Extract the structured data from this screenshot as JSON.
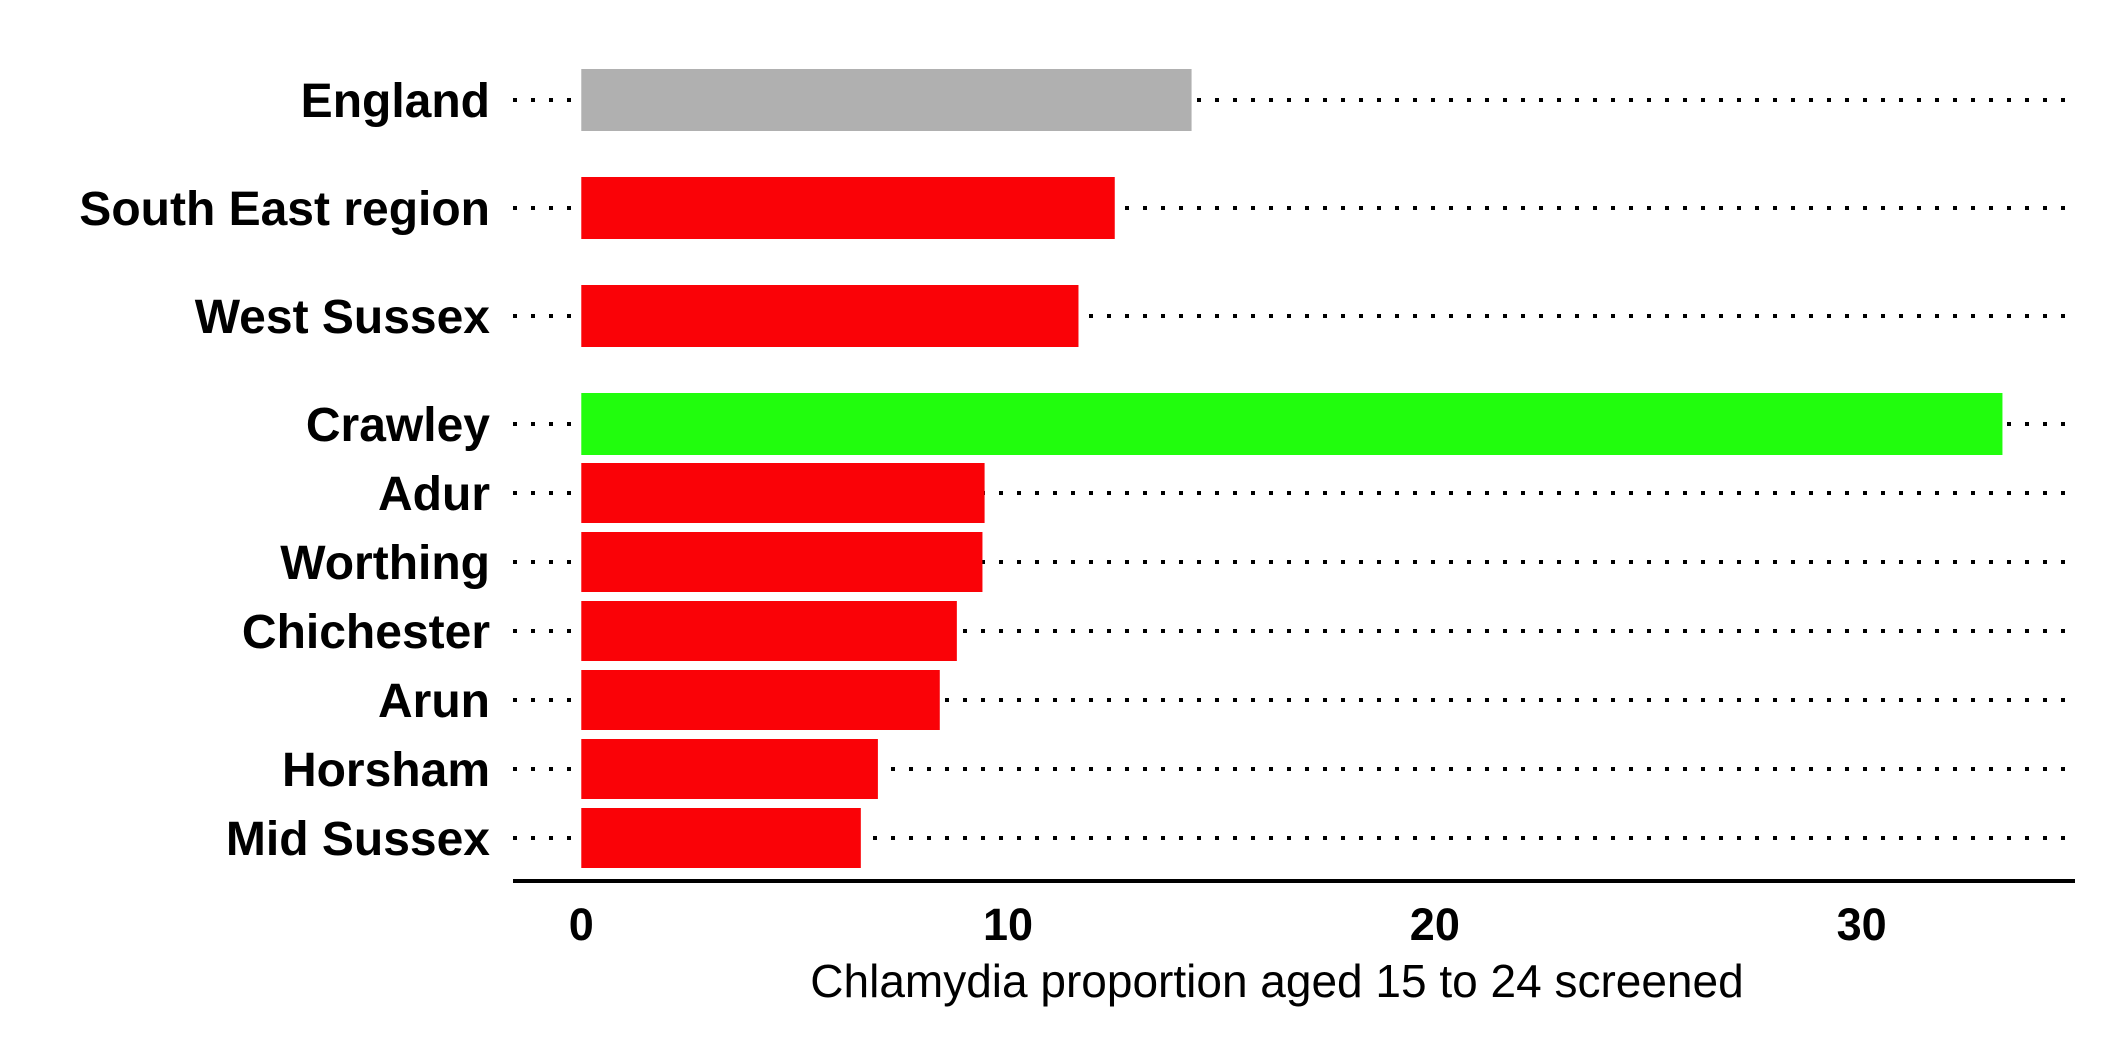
{
  "chart_data": {
    "type": "bar",
    "orientation": "horizontal",
    "title": "",
    "xlabel": "Chlamydia proportion aged 15 to 24 screened",
    "ylabel": "",
    "xlim": [
      -1.6,
      35.0
    ],
    "xticks": [
      0,
      10,
      20,
      30
    ],
    "tick_labels": [
      "0",
      "10",
      "20",
      "30"
    ],
    "grid": false,
    "categories": [
      "England",
      "South East region",
      "West Sussex",
      "Crawley",
      "Adur",
      "Worthing",
      "Chichester",
      "Arun",
      "Horsham",
      "Mid Sussex"
    ],
    "values": [
      14.3,
      12.5,
      11.65,
      33.3,
      9.45,
      9.4,
      8.8,
      8.4,
      6.95,
      6.55
    ],
    "bar_colors": [
      "#b0b0b0",
      "#fa0207",
      "#fa0207",
      "#21fd0d",
      "#fa0207",
      "#fa0207",
      "#fa0207",
      "#fa0207",
      "#fa0207",
      "#fa0207"
    ]
  }
}
